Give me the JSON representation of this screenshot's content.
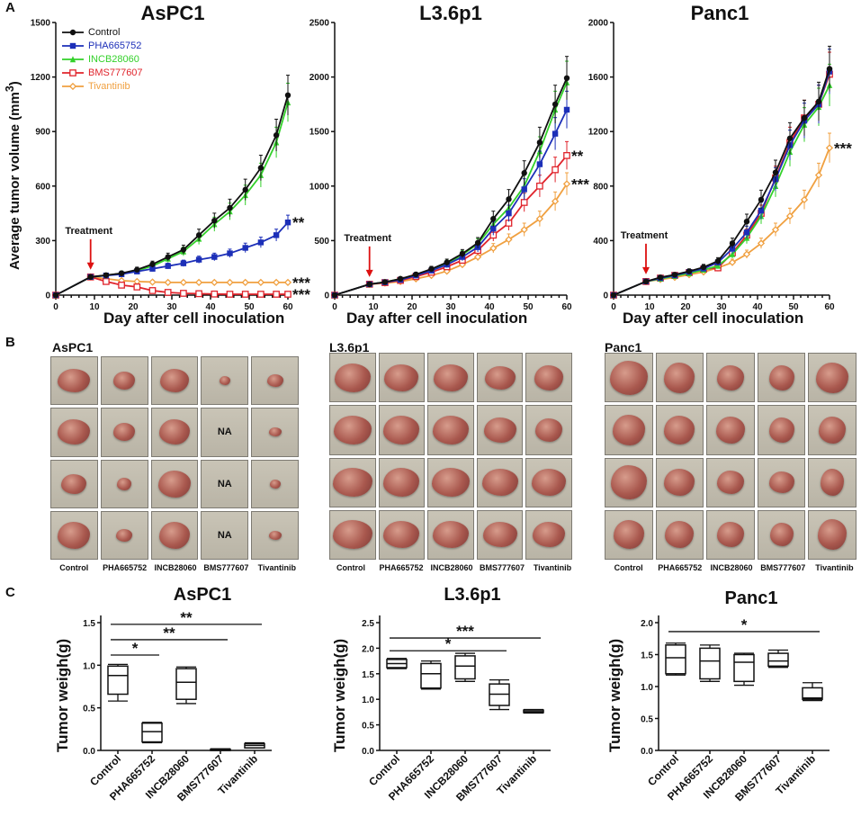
{
  "panels": {
    "a": "A",
    "b": "B",
    "c": "C"
  },
  "section_a": {
    "ylabel": "Average tumor volume (mm",
    "ylabel_sup": "3",
    "ylabel_end": ")",
    "xlabel": "Day after cell inoculation",
    "treatment_label": "Treatment"
  },
  "section_b": {
    "groups": [
      "AsPC1",
      "L3.6p1",
      "Panc1"
    ],
    "columns": [
      "Control",
      "PHA665752",
      "INCB28060",
      "BMS777607",
      "Tivantinib"
    ],
    "na_label": "NA"
  },
  "section_c": {
    "ylabel": "Tumor weigh(g)"
  },
  "colors": {
    "Control": "#111111",
    "PHA665752": "#1c2fb8",
    "INCB28060": "#33d12a",
    "BMS777607": "#e0242c",
    "Tivantinib": "#f0a040"
  },
  "chart_data": [
    {
      "type": "line",
      "title": "AsPC1",
      "xlabel": "Day after cell inoculation",
      "ylabel": "Average tumor volume (mm3)",
      "xlim": [
        0,
        60
      ],
      "ylim": [
        0,
        1500
      ],
      "xticks": [
        "0",
        "10",
        "20",
        "30",
        "40",
        "50",
        "60"
      ],
      "yticks": [
        "0",
        "300",
        "600",
        "900",
        "1200",
        "1500"
      ],
      "treatment_day": 9,
      "x": [
        0,
        9,
        13,
        17,
        21,
        25,
        29,
        33,
        37,
        41,
        45,
        49,
        53,
        57,
        60
      ],
      "series": [
        {
          "name": "Control",
          "values": [
            0,
            100,
            110,
            120,
            140,
            170,
            210,
            250,
            330,
            410,
            480,
            580,
            700,
            880,
            1100
          ]
        },
        {
          "name": "PHA665752",
          "values": [
            0,
            100,
            108,
            115,
            130,
            145,
            160,
            175,
            195,
            210,
            230,
            260,
            290,
            330,
            400
          ]
        },
        {
          "name": "INCB28060",
          "values": [
            0,
            100,
            108,
            120,
            135,
            160,
            200,
            240,
            310,
            390,
            460,
            550,
            660,
            840,
            1060
          ]
        },
        {
          "name": "BMS777607",
          "values": [
            0,
            100,
            75,
            55,
            45,
            25,
            15,
            10,
            8,
            6,
            5,
            5,
            5,
            5,
            5
          ]
        },
        {
          "name": "Tivantinib",
          "values": [
            0,
            100,
            90,
            80,
            75,
            72,
            70,
            70,
            70,
            70,
            70,
            70,
            70,
            70,
            70
          ]
        }
      ],
      "annotations": [
        {
          "series": "PHA665752",
          "text": "**"
        },
        {
          "series": "Tivantinib",
          "text": "***"
        },
        {
          "series": "BMS777607",
          "text": "***"
        }
      ]
    },
    {
      "type": "line",
      "title": "L3.6p1",
      "xlabel": "Day after cell inoculation",
      "xlim": [
        0,
        60
      ],
      "ylim": [
        0,
        2500
      ],
      "xticks": [
        "0",
        "10",
        "20",
        "30",
        "40",
        "50",
        "60"
      ],
      "yticks": [
        "0",
        "500",
        "1000",
        "1500",
        "2000",
        "2500"
      ],
      "treatment_day": 9,
      "x": [
        0,
        9,
        13,
        17,
        21,
        25,
        29,
        33,
        37,
        41,
        45,
        49,
        53,
        57,
        60
      ],
      "series": [
        {
          "name": "Control",
          "values": [
            0,
            100,
            120,
            150,
            190,
            240,
            300,
            380,
            480,
            700,
            880,
            1120,
            1400,
            1750,
            1990
          ]
        },
        {
          "name": "PHA665752",
          "values": [
            0,
            100,
            118,
            140,
            180,
            225,
            280,
            350,
            440,
            610,
            750,
            970,
            1200,
            1480,
            1700
          ]
        },
        {
          "name": "INCB28060",
          "values": [
            0,
            100,
            120,
            150,
            185,
            235,
            290,
            370,
            470,
            650,
            800,
            1000,
            1320,
            1700,
            1950
          ]
        },
        {
          "name": "BMS777607",
          "values": [
            0,
            100,
            115,
            135,
            170,
            210,
            260,
            320,
            410,
            550,
            660,
            850,
            1000,
            1150,
            1280
          ]
        },
        {
          "name": "Tivantinib",
          "values": [
            0,
            100,
            110,
            125,
            150,
            180,
            220,
            280,
            350,
            430,
            510,
            600,
            700,
            860,
            1020
          ]
        }
      ],
      "annotations": [
        {
          "series": "BMS777607",
          "text": "**"
        },
        {
          "series": "Tivantinib",
          "text": "***"
        }
      ]
    },
    {
      "type": "line",
      "title": "Panc1",
      "xlabel": "Day after cell inoculation",
      "xlim": [
        0,
        60
      ],
      "ylim": [
        0,
        2000
      ],
      "xticks": [
        "0",
        "10",
        "20",
        "30",
        "40",
        "50",
        "60"
      ],
      "yticks": [
        "0",
        "400",
        "800",
        "1200",
        "1600",
        "2000"
      ],
      "treatment_day": 9,
      "x": [
        0,
        9,
        13,
        17,
        21,
        25,
        29,
        33,
        37,
        41,
        45,
        49,
        53,
        57,
        60
      ],
      "series": [
        {
          "name": "Control",
          "values": [
            0,
            100,
            130,
            150,
            175,
            205,
            250,
            380,
            540,
            700,
            900,
            1150,
            1300,
            1420,
            1660
          ]
        },
        {
          "name": "PHA665752",
          "values": [
            0,
            100,
            125,
            145,
            170,
            195,
            240,
            340,
            460,
            620,
            850,
            1100,
            1280,
            1400,
            1640
          ]
        },
        {
          "name": "INCB28060",
          "values": [
            0,
            100,
            120,
            140,
            160,
            185,
            215,
            300,
            420,
            580,
            800,
            1050,
            1250,
            1380,
            1540
          ]
        },
        {
          "name": "BMS777607",
          "values": [
            0,
            100,
            125,
            145,
            165,
            190,
            200,
            310,
            440,
            600,
            860,
            1120,
            1300,
            1400,
            1620
          ]
        },
        {
          "name": "Tivantinib",
          "values": [
            0,
            100,
            115,
            130,
            150,
            170,
            200,
            240,
            300,
            380,
            480,
            580,
            700,
            880,
            1080
          ]
        }
      ],
      "annotations": [
        {
          "series": "Tivantinib",
          "text": "***"
        }
      ]
    },
    {
      "type": "box",
      "title": "AsPC1",
      "ylabel": "Tumor weigh(g)",
      "ylim": [
        0,
        1.5
      ],
      "yticks": [
        "0.0",
        "0.5",
        "1.0",
        "1.5"
      ],
      "categories": [
        "Control",
        "PHA665752",
        "INCB28060",
        "BMS777607",
        "Tivantinib"
      ],
      "boxes": [
        {
          "min": 0.58,
          "q1": 0.66,
          "median": 0.88,
          "q3": 0.99,
          "max": 1.01
        },
        {
          "min": 0.09,
          "q1": 0.1,
          "median": 0.22,
          "q3": 0.32,
          "max": 0.33
        },
        {
          "min": 0.55,
          "q1": 0.6,
          "median": 0.8,
          "q3": 0.96,
          "max": 0.98
        },
        {
          "min": 0.0,
          "q1": 0.0,
          "median": 0.01,
          "q3": 0.015,
          "max": 0.02
        },
        {
          "min": 0.03,
          "q1": 0.03,
          "median": 0.06,
          "q3": 0.08,
          "max": 0.09
        }
      ],
      "brackets": [
        {
          "from": "Control",
          "to": "PHA665752",
          "text": "*"
        },
        {
          "from": "Control",
          "to": "BMS777607",
          "text": "**"
        },
        {
          "from": "Control",
          "to": "Tivantinib",
          "text": "**"
        }
      ]
    },
    {
      "type": "box",
      "title": "L3.6p1",
      "ylabel": "Tumor weigh(g)",
      "ylim": [
        0,
        2.5
      ],
      "yticks": [
        "0.0",
        "0.5",
        "1.0",
        "1.5",
        "2.0",
        "2.5"
      ],
      "categories": [
        "Control",
        "PHA665752",
        "INCB28060",
        "BMS777607",
        "Tivantinib"
      ],
      "boxes": [
        {
          "min": 1.6,
          "q1": 1.62,
          "median": 1.7,
          "q3": 1.78,
          "max": 1.8
        },
        {
          "min": 1.2,
          "q1": 1.22,
          "median": 1.5,
          "q3": 1.7,
          "max": 1.75
        },
        {
          "min": 1.35,
          "q1": 1.4,
          "median": 1.65,
          "q3": 1.85,
          "max": 1.9
        },
        {
          "min": 0.8,
          "q1": 0.88,
          "median": 1.1,
          "q3": 1.3,
          "max": 1.38
        },
        {
          "min": 0.73,
          "q1": 0.74,
          "median": 0.76,
          "q3": 0.79,
          "max": 0.8
        }
      ],
      "brackets": [
        {
          "from": "Control",
          "to": "BMS777607",
          "text": "*"
        },
        {
          "from": "Control",
          "to": "Tivantinib",
          "text": "***"
        }
      ]
    },
    {
      "type": "box",
      "title": "Panc1",
      "ylabel": "Tumor weigh(g)",
      "ylim": [
        0,
        2.0
      ],
      "yticks": [
        "0.0",
        "0.5",
        "1.0",
        "1.5",
        "2.0"
      ],
      "categories": [
        "Control",
        "PHA665752",
        "INCB28060",
        "BMS777607",
        "Tivantinib"
      ],
      "boxes": [
        {
          "min": 1.18,
          "q1": 1.2,
          "median": 1.45,
          "q3": 1.65,
          "max": 1.68
        },
        {
          "min": 1.08,
          "q1": 1.12,
          "median": 1.4,
          "q3": 1.6,
          "max": 1.65
        },
        {
          "min": 1.02,
          "q1": 1.08,
          "median": 1.38,
          "q3": 1.5,
          "max": 1.52
        },
        {
          "min": 1.3,
          "q1": 1.32,
          "median": 1.4,
          "q3": 1.52,
          "max": 1.57
        },
        {
          "min": 0.78,
          "q1": 0.8,
          "median": 0.82,
          "q3": 0.98,
          "max": 1.06
        }
      ],
      "brackets": [
        {
          "from": "Control",
          "to": "Tivantinib",
          "text": "*"
        }
      ]
    }
  ]
}
